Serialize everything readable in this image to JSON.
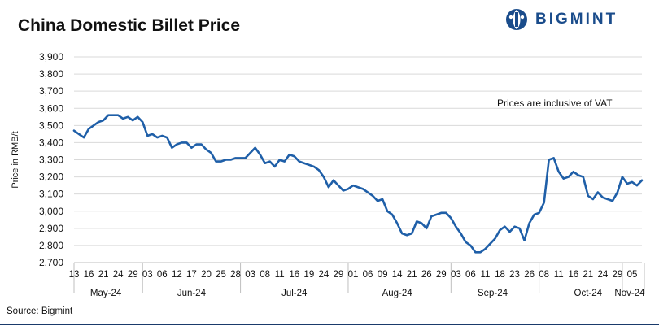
{
  "title": "China Domestic Billet Price",
  "logo": {
    "text": "BIGMINT",
    "icon": "bigmint-globe-icon",
    "color": "#1a4c8b"
  },
  "note": "Prices are inclusive of VAT",
  "source": "Source: Bigmint",
  "chart_data": {
    "type": "line",
    "title": "China Domestic Billet Price",
    "ylabel": "Price in RMB/t",
    "xlabel": "",
    "ylim": [
      2700,
      3900
    ],
    "yticks": [
      2700,
      2800,
      2900,
      3000,
      3100,
      3200,
      3300,
      3400,
      3500,
      3600,
      3700,
      3800,
      3900
    ],
    "ytick_labels": [
      "2,700",
      "2,800",
      "2,900",
      "3,000",
      "3,100",
      "3,200",
      "3,300",
      "3,400",
      "3,500",
      "3,600",
      "3,700",
      "3,800",
      "3,900"
    ],
    "grid": "horizontal",
    "line_color": "#1f5fa8",
    "x_tick_labels": [
      "13",
      "16",
      "21",
      "24",
      "29",
      "03",
      "06",
      "12",
      "17",
      "20",
      "25",
      "28",
      "03",
      "08",
      "11",
      "16",
      "19",
      "24",
      "29",
      "01",
      "06",
      "09",
      "14",
      "21",
      "26",
      "29",
      "03",
      "06",
      "11",
      "18",
      "23",
      "26",
      "08",
      "11",
      "16",
      "21",
      "24",
      "29",
      "05"
    ],
    "x_tick_index": [
      0,
      3,
      6,
      9,
      12,
      15,
      18,
      21,
      24,
      27,
      30,
      33,
      36,
      39,
      42,
      45,
      48,
      51,
      54,
      57,
      60,
      63,
      66,
      69,
      72,
      75,
      78,
      81,
      84,
      87,
      90,
      93,
      96,
      99,
      102,
      105,
      108,
      111,
      114
    ],
    "months": [
      {
        "label": "May-24",
        "center": 6.5
      },
      {
        "label": "Jun-24",
        "center": 24
      },
      {
        "label": "Jul-24",
        "center": 45
      },
      {
        "label": "Aug-24",
        "center": 66
      },
      {
        "label": "Sep-24",
        "center": 85.5
      },
      {
        "label": "Oct-24",
        "center": 105
      },
      {
        "label": "Nov-24",
        "center": 113.5
      }
    ],
    "month_separators": [
      14,
      34,
      56,
      77,
      95,
      112
    ],
    "series": [
      {
        "values": [
          3470,
          3450,
          3430,
          3480,
          3500,
          3520,
          3530,
          3560,
          3560,
          3560,
          3540,
          3550,
          3530,
          3550,
          3520,
          3440,
          3450,
          3430,
          3440,
          3430,
          3370,
          3390,
          3400,
          3400,
          3370,
          3390,
          3390,
          3360,
          3340,
          3290,
          3290,
          3300,
          3300,
          3310,
          3310,
          3310,
          3340,
          3370,
          3330,
          3280,
          3290,
          3260,
          3300,
          3290,
          3330,
          3320,
          3290,
          3280,
          3270,
          3260,
          3240,
          3200,
          3140,
          3180,
          3150,
          3120,
          3130,
          3150,
          3140,
          3130,
          3110,
          3090,
          3060,
          3070,
          3000,
          2980,
          2930,
          2870,
          2860,
          2870,
          2940,
          2930,
          2900,
          2970,
          2980,
          2990,
          2990,
          2960,
          2910,
          2870,
          2820,
          2800,
          2760,
          2760,
          2780,
          2810,
          2840,
          2890,
          2910,
          2880,
          2910,
          2900,
          2830,
          2930,
          2980,
          2990,
          3050,
          3300,
          3310,
          3230,
          3190,
          3200,
          3230,
          3210,
          3200,
          3090,
          3070,
          3110,
          3080,
          3070,
          3060,
          3110,
          3200,
          3160,
          3170,
          3150,
          3180
        ]
      }
    ]
  }
}
